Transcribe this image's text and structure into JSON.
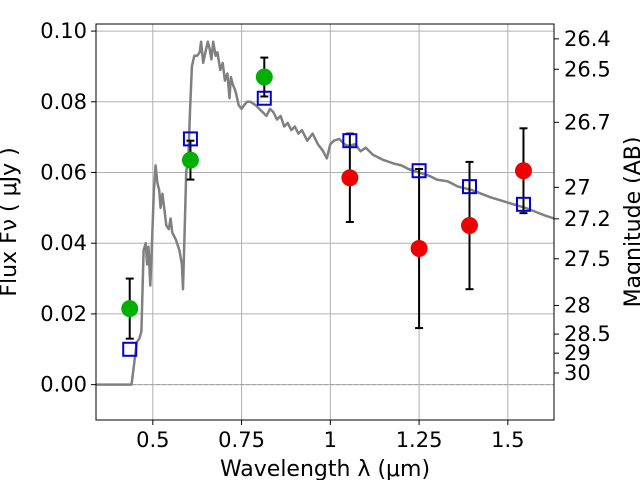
{
  "chart_data": {
    "type": "scatter",
    "xlabel": "Wavelength  λ (μm)",
    "ylabel": "Flux  Fν  ( μJy )",
    "ylabel_right": "Magnitude (AB)",
    "xlim": [
      0.34,
      1.63
    ],
    "ylim": [
      -0.01,
      0.102
    ],
    "grid": true,
    "x_ticks": [
      {
        "value": 0.5,
        "label": "0.5"
      },
      {
        "value": 0.75,
        "label": "0.75"
      },
      {
        "value": 1.0,
        "label": "1"
      },
      {
        "value": 1.25,
        "label": "1.25"
      },
      {
        "value": 1.5,
        "label": "1.5"
      }
    ],
    "y_ticks": [
      {
        "value": 0.0,
        "label": "0.00"
      },
      {
        "value": 0.02,
        "label": "0.02"
      },
      {
        "value": 0.04,
        "label": "0.04"
      },
      {
        "value": 0.06,
        "label": "0.06"
      },
      {
        "value": 0.08,
        "label": "0.08"
      },
      {
        "value": 0.1,
        "label": "0.10"
      }
    ],
    "right_ticks": [
      {
        "flux": 0.0978,
        "label": "26.4"
      },
      {
        "flux": 0.0892,
        "label": "26.5"
      },
      {
        "flux": 0.0742,
        "label": "26.7"
      },
      {
        "flux": 0.0558,
        "label": "27"
      },
      {
        "flux": 0.0469,
        "label": "27.2"
      },
      {
        "flux": 0.0356,
        "label": "27.5"
      },
      {
        "flux": 0.0224,
        "label": "28"
      },
      {
        "flux": 0.0143,
        "label": "28.5"
      },
      {
        "flux": 0.0089,
        "label": "29"
      },
      {
        "flux": 0.0033,
        "label": "30"
      }
    ],
    "colors": {
      "detected": "#00b000",
      "red": "#ee0000",
      "model_box": "#0000dd",
      "sed": "#808080"
    },
    "detections_green": [
      {
        "x": 0.435,
        "y": 0.0215,
        "err": 0.0085
      },
      {
        "x": 0.606,
        "y": 0.0635,
        "err": 0.0055
      },
      {
        "x": 0.814,
        "y": 0.087,
        "err": 0.0055
      }
    ],
    "detections_red": [
      {
        "x": 1.055,
        "y": 0.0585,
        "err": 0.0125
      },
      {
        "x": 1.25,
        "y": 0.0385,
        "err": 0.0225
      },
      {
        "x": 1.392,
        "y": 0.045,
        "err": 0.018
      },
      {
        "x": 1.544,
        "y": 0.0605,
        "err": 0.012
      }
    ],
    "model_photometry": [
      {
        "x": 0.435,
        "y": 0.01
      },
      {
        "x": 0.606,
        "y": 0.0695
      },
      {
        "x": 0.814,
        "y": 0.081
      },
      {
        "x": 1.055,
        "y": 0.069
      },
      {
        "x": 1.25,
        "y": 0.0605
      },
      {
        "x": 1.392,
        "y": 0.056
      },
      {
        "x": 1.544,
        "y": 0.051
      }
    ],
    "sed_model": [
      [
        0.34,
        0.0
      ],
      [
        0.44,
        0.0
      ],
      [
        0.445,
        0.004
      ],
      [
        0.455,
        0.012
      ],
      [
        0.462,
        0.013
      ],
      [
        0.468,
        0.015
      ],
      [
        0.474,
        0.038
      ],
      [
        0.48,
        0.04
      ],
      [
        0.484,
        0.034
      ],
      [
        0.488,
        0.039
      ],
      [
        0.493,
        0.028
      ],
      [
        0.497,
        0.038
      ],
      [
        0.503,
        0.055
      ],
      [
        0.508,
        0.062
      ],
      [
        0.513,
        0.057
      ],
      [
        0.518,
        0.055
      ],
      [
        0.522,
        0.05
      ],
      [
        0.527,
        0.054
      ],
      [
        0.532,
        0.05
      ],
      [
        0.538,
        0.045
      ],
      [
        0.545,
        0.044
      ],
      [
        0.55,
        0.047
      ],
      [
        0.555,
        0.043
      ],
      [
        0.565,
        0.041
      ],
      [
        0.575,
        0.038
      ],
      [
        0.582,
        0.034
      ],
      [
        0.585,
        0.027
      ],
      [
        0.59,
        0.045
      ],
      [
        0.594,
        0.06
      ],
      [
        0.6,
        0.064
      ],
      [
        0.605,
        0.078
      ],
      [
        0.61,
        0.09
      ],
      [
        0.617,
        0.093
      ],
      [
        0.625,
        0.093
      ],
      [
        0.632,
        0.094
      ],
      [
        0.636,
        0.097
      ],
      [
        0.642,
        0.091
      ],
      [
        0.648,
        0.094
      ],
      [
        0.655,
        0.097
      ],
      [
        0.66,
        0.095
      ],
      [
        0.665,
        0.092
      ],
      [
        0.67,
        0.097
      ],
      [
        0.677,
        0.093
      ],
      [
        0.682,
        0.094
      ],
      [
        0.69,
        0.089
      ],
      [
        0.697,
        0.091
      ],
      [
        0.703,
        0.086
      ],
      [
        0.71,
        0.088
      ],
      [
        0.716,
        0.081
      ],
      [
        0.72,
        0.087
      ],
      [
        0.725,
        0.085
      ],
      [
        0.733,
        0.083
      ],
      [
        0.742,
        0.079
      ],
      [
        0.75,
        0.078
      ],
      [
        0.757,
        0.079
      ],
      [
        0.765,
        0.08
      ],
      [
        0.775,
        0.08
      ],
      [
        0.79,
        0.079
      ],
      [
        0.8,
        0.078
      ],
      [
        0.81,
        0.077
      ],
      [
        0.82,
        0.076
      ],
      [
        0.83,
        0.078
      ],
      [
        0.84,
        0.077
      ],
      [
        0.85,
        0.075
      ],
      [
        0.86,
        0.076
      ],
      [
        0.87,
        0.073
      ],
      [
        0.88,
        0.074
      ],
      [
        0.89,
        0.072
      ],
      [
        0.9,
        0.073
      ],
      [
        0.91,
        0.071
      ],
      [
        0.92,
        0.072
      ],
      [
        0.935,
        0.069
      ],
      [
        0.95,
        0.071
      ],
      [
        0.965,
        0.068
      ],
      [
        0.98,
        0.066
      ],
      [
        0.99,
        0.064
      ],
      [
        1.0,
        0.068
      ],
      [
        1.01,
        0.069
      ],
      [
        1.025,
        0.0695
      ],
      [
        1.04,
        0.068
      ],
      [
        1.05,
        0.0675
      ],
      [
        1.07,
        0.068
      ],
      [
        1.085,
        0.066
      ],
      [
        1.1,
        0.067
      ],
      [
        1.12,
        0.065
      ],
      [
        1.15,
        0.0635
      ],
      [
        1.18,
        0.0625
      ],
      [
        1.2,
        0.062
      ],
      [
        1.22,
        0.061
      ],
      [
        1.25,
        0.06
      ],
      [
        1.28,
        0.059
      ],
      [
        1.3,
        0.058
      ],
      [
        1.33,
        0.0575
      ],
      [
        1.36,
        0.056
      ],
      [
        1.4,
        0.055
      ],
      [
        1.45,
        0.053
      ],
      [
        1.5,
        0.0515
      ],
      [
        1.55,
        0.05
      ],
      [
        1.6,
        0.048
      ],
      [
        1.63,
        0.047
      ]
    ]
  }
}
